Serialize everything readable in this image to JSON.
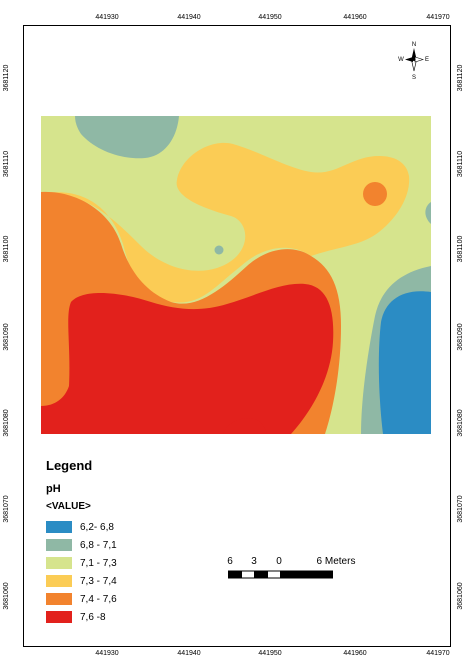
{
  "grid": {
    "x_ticks": [
      "441930",
      "441940",
      "441950",
      "441960",
      "441970"
    ],
    "y_ticks": [
      "3681120",
      "3681110",
      "3681100",
      "3681090",
      "3681080",
      "3681070",
      "3681060"
    ]
  },
  "north_arrow": {
    "n": "N",
    "s": "S",
    "e": "E",
    "w": "W"
  },
  "legend": {
    "title": "Legend",
    "layer": "pH",
    "field": "<VALUE>",
    "classes": [
      {
        "label": "6,2- 6,8",
        "color": "#2b8cc4"
      },
      {
        "label": "6,8 - 7,1",
        "color": "#8fb8a5"
      },
      {
        "label": "7,1 - 7,3",
        "color": "#d6e48d"
      },
      {
        "label": "7,3 - 7,4",
        "color": "#fbcc55"
      },
      {
        "label": "7,4 - 7,6",
        "color": "#f2832e"
      },
      {
        "label": "7,6 -8",
        "color": "#e2211c"
      }
    ]
  },
  "scale_bar": {
    "labels": [
      "6",
      "3",
      "0",
      "6 Meters"
    ]
  }
}
